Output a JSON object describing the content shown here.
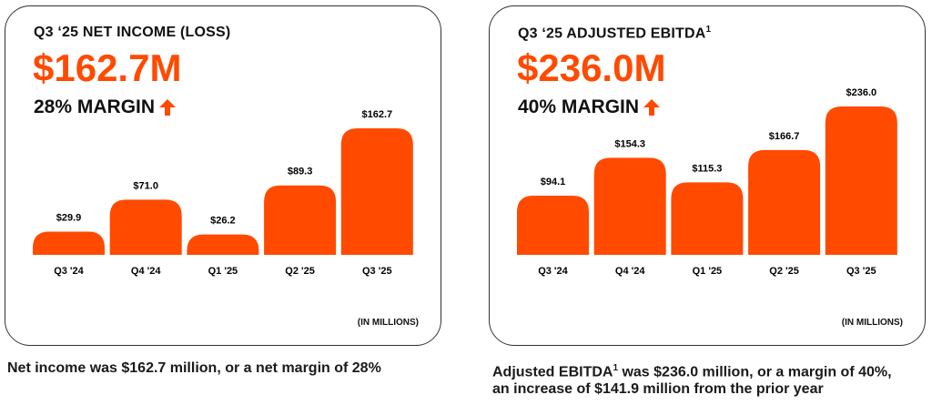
{
  "colors": {
    "accent": "#ff4a00",
    "text": "#111111"
  },
  "chart_data": [
    {
      "type": "bar",
      "title": "Q3 ‘25 NET INCOME (LOSS)",
      "headline": "$162.7M",
      "margin_label": "28% MARGIN",
      "margin_trend": "up",
      "units": "(IN MILLIONS)",
      "categories": [
        "Q3 '24",
        "Q4 '24",
        "Q1 '25",
        "Q2 '25",
        "Q3 '25"
      ],
      "values": [
        29.9,
        71.0,
        26.2,
        89.3,
        162.7
      ],
      "data_labels": [
        "$29.9",
        "$71.0",
        "$26.2",
        "$89.3",
        "$162.7"
      ],
      "ylim": [
        0,
        175
      ],
      "grid": false,
      "caption": "Net income was $162.7 million, or a net margin of 28%"
    },
    {
      "type": "bar",
      "title": "Q3 ‘25 ADJUSTED EBITDA",
      "title_sup": "1",
      "headline": "$236.0M",
      "margin_label": "40% MARGIN",
      "margin_trend": "up",
      "units": "(IN MILLIONS)",
      "categories": [
        "Q3 '24",
        "Q4 '24",
        "Q1 '25",
        "Q2 '25",
        "Q3 '25"
      ],
      "values": [
        94.1,
        154.3,
        115.3,
        166.7,
        236.0
      ],
      "data_labels": [
        "$94.1",
        "$154.3",
        "$115.3",
        "$166.7",
        "$236.0"
      ],
      "ylim": [
        0,
        250
      ],
      "grid": false,
      "caption_a": "Adjusted EBITDA",
      "caption_sup": "1",
      "caption_b": " was $236.0 million, or a margin of 40%,",
      "caption_c": "an increase of $141.9 million from the prior year"
    }
  ]
}
